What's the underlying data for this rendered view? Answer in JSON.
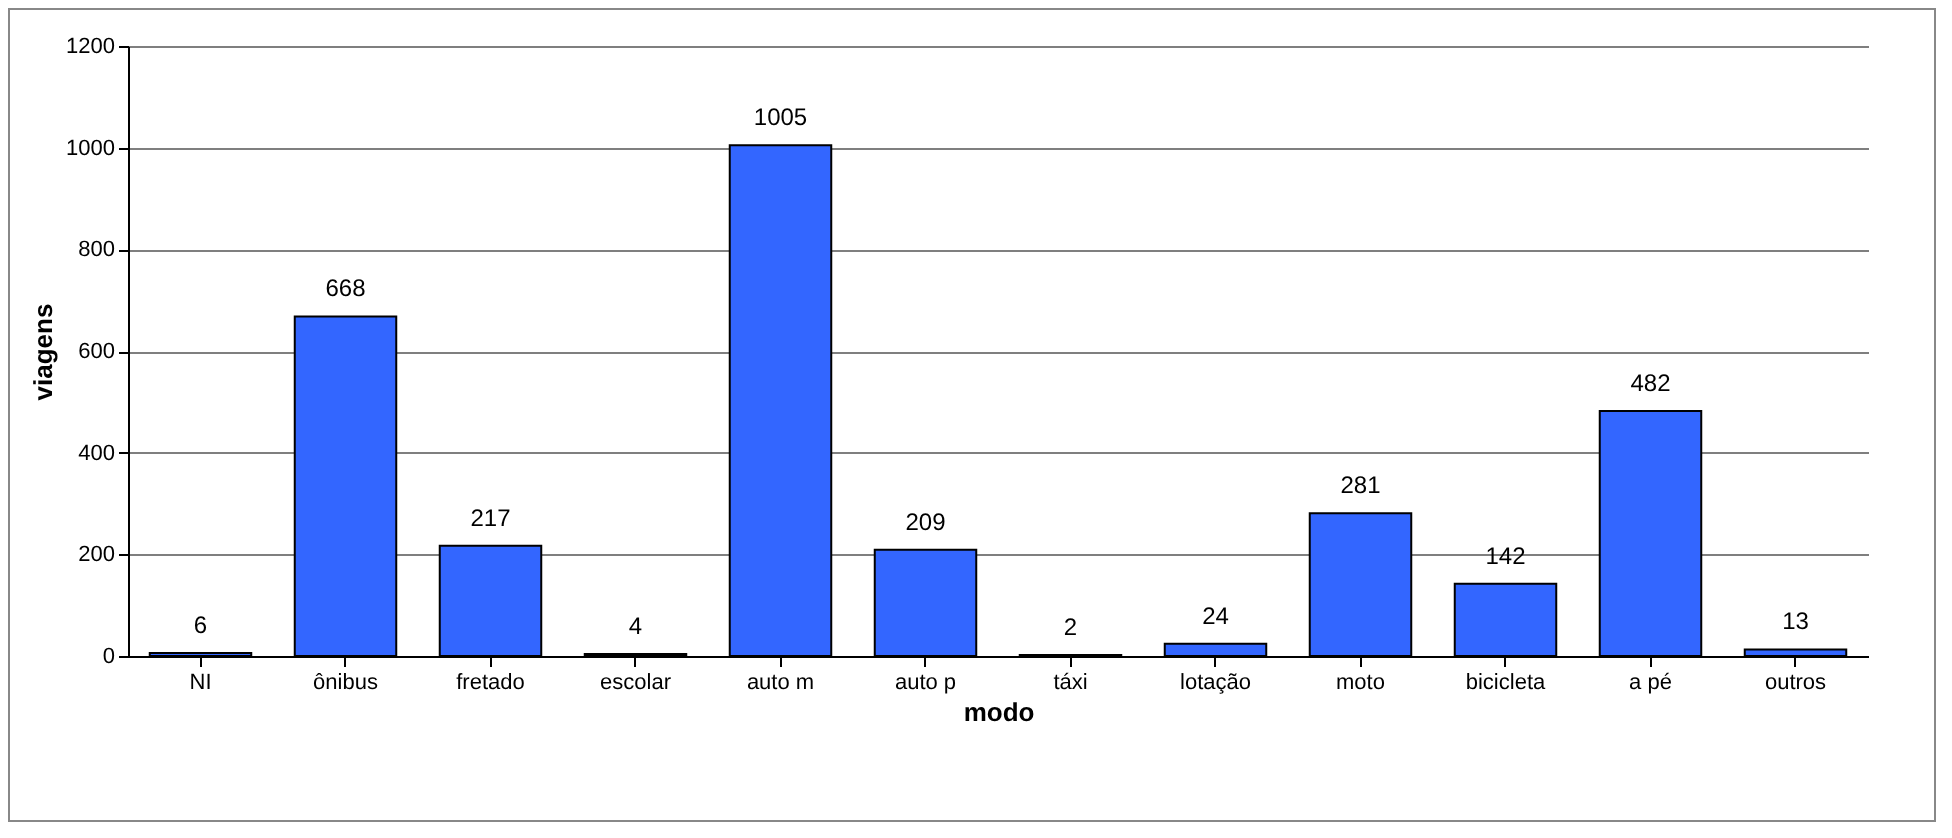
{
  "chart_data": {
    "type": "bar",
    "xlabel": "modo",
    "ylabel": "viagens",
    "categories": [
      "NI",
      "ônibus",
      "fretado",
      "escolar",
      "auto m",
      "auto p",
      "táxi",
      "lotação",
      "moto",
      "bicicleta",
      "a pé",
      "outros"
    ],
    "values": [
      6,
      668,
      217,
      4,
      1005,
      209,
      2,
      24,
      281,
      142,
      482,
      13
    ],
    "color": "#3366ff",
    "ylim": [
      0,
      1200
    ],
    "yticks": [
      0,
      200,
      400,
      600,
      800,
      1000,
      1200
    ],
    "grid": "y",
    "data_labels": true
  }
}
